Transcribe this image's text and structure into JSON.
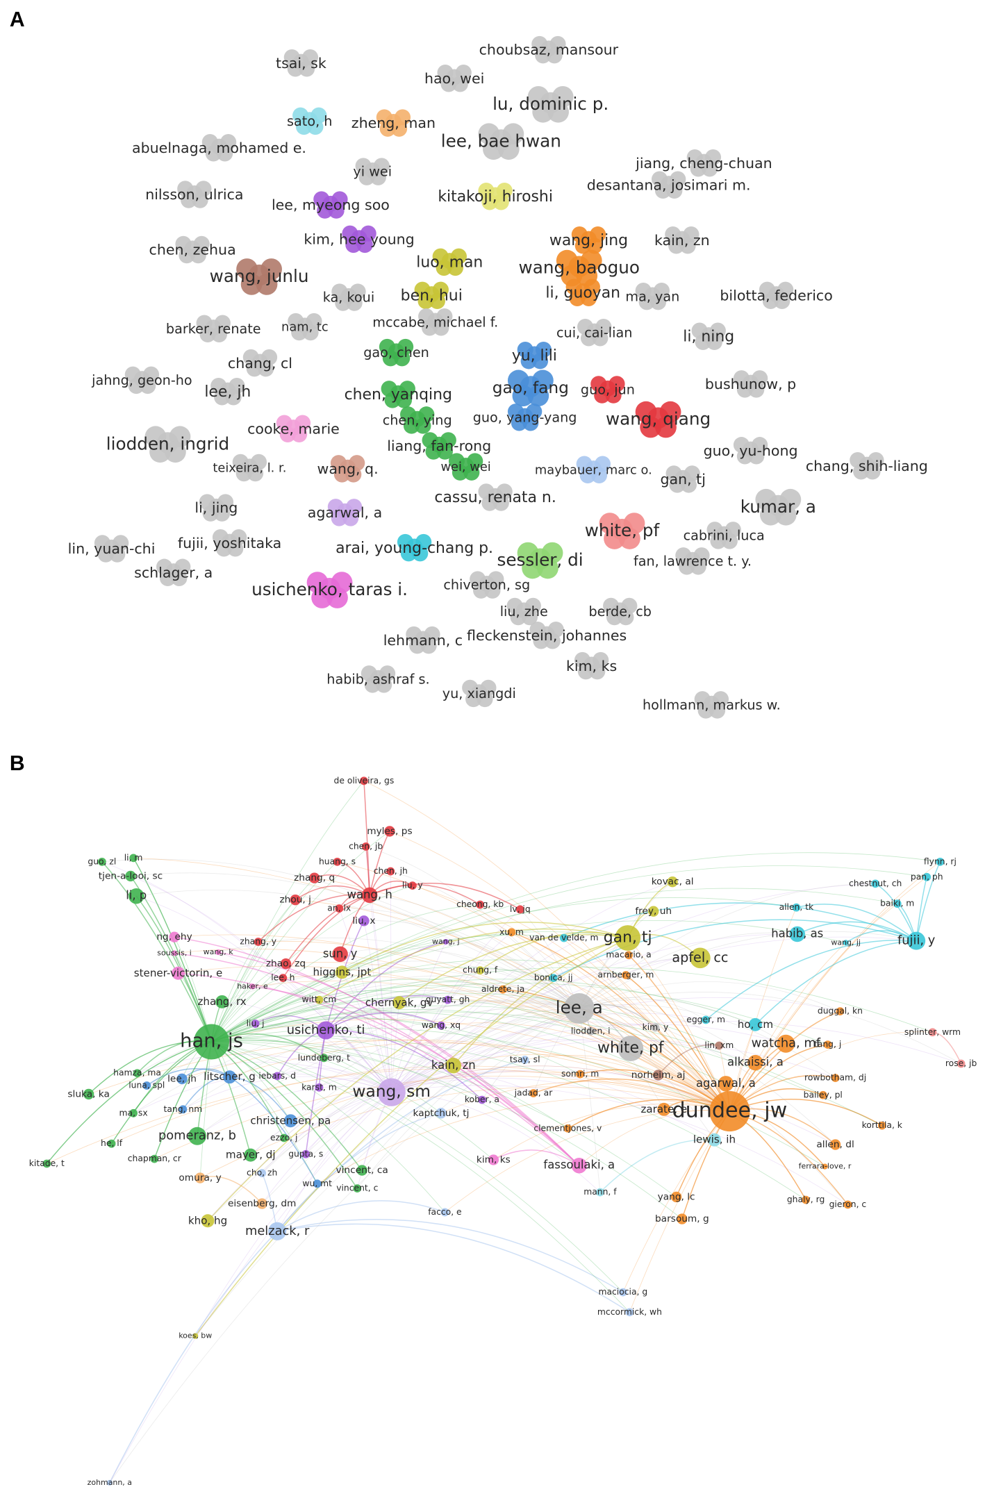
{
  "panels": [
    {
      "label": "A",
      "nodes": [
        {
          "label": "choubsaz, mansour",
          "color": "#c4c4c4"
        },
        {
          "label": "tsai, sk",
          "color": "#c4c4c4"
        },
        {
          "label": "hao, wei",
          "color": "#c4c4c4"
        },
        {
          "label": "lu, dominic p.",
          "color": "#c4c4c4"
        },
        {
          "label": "sato, h",
          "color": "#8edbe8"
        },
        {
          "label": "zheng, man",
          "color": "#f4b06c"
        },
        {
          "label": "lee, bae hwan",
          "color": "#c4c4c4"
        },
        {
          "label": "abuelnaga, mohamed e.",
          "color": "#c4c4c4"
        },
        {
          "label": "jiang, cheng-chuan",
          "color": "#c4c4c4"
        },
        {
          "label": "yi wei",
          "color": "#c4c4c4"
        },
        {
          "label": "desantana, josimari m.",
          "color": "#c4c4c4"
        },
        {
          "label": "nilsson, ulrica",
          "color": "#c4c4c4"
        },
        {
          "label": "kitakoji, hiroshi",
          "color": "#e2e272"
        },
        {
          "label": "lee, myeong soo",
          "color": "#a259d9"
        },
        {
          "label": "kim, hee young",
          "color": "#a259d9"
        },
        {
          "label": "wang, jing",
          "color": "#f28c28"
        },
        {
          "label": "kain, zn",
          "color": "#c4c4c4"
        },
        {
          "label": "chen, zehua",
          "color": "#c4c4c4"
        },
        {
          "label": "luo, man",
          "color": "#c8c436"
        },
        {
          "label": "wang, junlu",
          "color": "#b07a6a"
        },
        {
          "label": "wang, baoguo",
          "color": "#f28c28"
        },
        {
          "label": "li, guoyan",
          "color": "#f28c28"
        },
        {
          "label": "ma, yan",
          "color": "#c4c4c4"
        },
        {
          "label": "bilotta, federico",
          "color": "#c4c4c4"
        },
        {
          "label": "ka, koui",
          "color": "#c4c4c4"
        },
        {
          "label": "ben, hui",
          "color": "#c8c436"
        },
        {
          "label": "mccabe, michael f.",
          "color": "#c4c4c4"
        },
        {
          "label": "barker, renate",
          "color": "#c4c4c4"
        },
        {
          "label": "nam, tc",
          "color": "#c4c4c4"
        },
        {
          "label": "cui, cai-lian",
          "color": "#c4c4c4"
        },
        {
          "label": "li, ning",
          "color": "#c4c4c4"
        },
        {
          "label": "gao, chen",
          "color": "#3fb34f"
        },
        {
          "label": "yu, lili",
          "color": "#4a8fd8"
        },
        {
          "label": "chang, cl",
          "color": "#c4c4c4"
        },
        {
          "label": "jahng, geon-ho",
          "color": "#c4c4c4"
        },
        {
          "label": "bushunow, p",
          "color": "#c4c4c4"
        },
        {
          "label": "lee, jh",
          "color": "#c4c4c4"
        },
        {
          "label": "gao, fang",
          "color": "#4a8fd8"
        },
        {
          "label": "guo, jun",
          "color": "#e3393f"
        },
        {
          "label": "chen, yanqing",
          "color": "#3fb34f"
        },
        {
          "label": "wang, qiang",
          "color": "#e3393f"
        },
        {
          "label": "chen, ying",
          "color": "#3fb34f"
        },
        {
          "label": "guo, yang-yang",
          "color": "#4a8fd8"
        },
        {
          "label": "cooke, marie",
          "color": "#f2a0d8"
        },
        {
          "label": "liodden, ingrid",
          "color": "#c4c4c4"
        },
        {
          "label": "liang, fan-rong",
          "color": "#3fb34f"
        },
        {
          "label": "guo, yu-hong",
          "color": "#c4c4c4"
        },
        {
          "label": "teixeira, l. r.",
          "color": "#c4c4c4"
        },
        {
          "label": "wang, q.",
          "color": "#d49a88"
        },
        {
          "label": "wei, wei",
          "color": "#3fb34f"
        },
        {
          "label": "maybauer, marc o.",
          "color": "#a9c7ef"
        },
        {
          "label": "chang, shih-liang",
          "color": "#c4c4c4"
        },
        {
          "label": "gan, tj",
          "color": "#c4c4c4"
        },
        {
          "label": "cassu, renata n.",
          "color": "#c4c4c4"
        },
        {
          "label": "kumar, a",
          "color": "#c4c4c4"
        },
        {
          "label": "li, jing",
          "color": "#c4c4c4"
        },
        {
          "label": "agarwal, a",
          "color": "#c9a6e9"
        },
        {
          "label": "white, pf",
          "color": "#f28b8b"
        },
        {
          "label": "arai, young-chang p.",
          "color": "#38c6d8"
        },
        {
          "label": "fujii, yoshitaka",
          "color": "#c4c4c4"
        },
        {
          "label": "lin, yuan-chi",
          "color": "#c4c4c4"
        },
        {
          "label": "cabrini, luca",
          "color": "#c4c4c4"
        },
        {
          "label": "sessler, di",
          "color": "#8fd672"
        },
        {
          "label": "fan, lawrence t. y.",
          "color": "#c4c4c4"
        },
        {
          "label": "schlager, a",
          "color": "#c4c4c4"
        },
        {
          "label": "usichenko, taras i.",
          "color": "#e56ad6"
        },
        {
          "label": "chiverton, sg",
          "color": "#c4c4c4"
        },
        {
          "label": "liu, zhe",
          "color": "#c4c4c4"
        },
        {
          "label": "berde, cb",
          "color": "#c4c4c4"
        },
        {
          "label": "lehmann, c",
          "color": "#c4c4c4"
        },
        {
          "label": "fleckenstein, johannes",
          "color": "#c4c4c4"
        },
        {
          "label": "kim, ks",
          "color": "#c4c4c4"
        },
        {
          "label": "habib, ashraf s.",
          "color": "#c4c4c4"
        },
        {
          "label": "yu, xiangdi",
          "color": "#c4c4c4"
        },
        {
          "label": "hollmann, markus w.",
          "color": "#c4c4c4"
        }
      ]
    },
    {
      "label": "B",
      "nodes": [
        {
          "label": "de oliveira, gs",
          "color": "#e3393f"
        },
        {
          "label": "myles, ps",
          "color": "#e3393f"
        },
        {
          "label": "chen, jb",
          "color": "#e3393f"
        },
        {
          "label": "guo, zl",
          "color": "#3fb34f"
        },
        {
          "label": "li, m",
          "color": "#3fb34f"
        },
        {
          "label": "huang, s",
          "color": "#e3393f"
        },
        {
          "label": "tjen-a-looi, sc",
          "color": "#3fb34f"
        },
        {
          "label": "chen, jh",
          "color": "#e3393f"
        },
        {
          "label": "flynn, rj",
          "color": "#38c6d8"
        },
        {
          "label": "zhang, q",
          "color": "#e3393f"
        },
        {
          "label": "kovac, al",
          "color": "#c8c436"
        },
        {
          "label": "chestnut, ch",
          "color": "#38c6d8"
        },
        {
          "label": "pan, ph",
          "color": "#38c6d8"
        },
        {
          "label": "liu, y",
          "color": "#e3393f"
        },
        {
          "label": "li, p",
          "color": "#3fb34f"
        },
        {
          "label": "wang, h",
          "color": "#e3393f"
        },
        {
          "label": "zhou, j",
          "color": "#e3393f"
        },
        {
          "label": "cheong, kb",
          "color": "#e3393f"
        },
        {
          "label": "lv, jq",
          "color": "#e3393f"
        },
        {
          "label": "an, lx",
          "color": "#e3393f"
        },
        {
          "label": "allen, tk",
          "color": "#38c6d8"
        },
        {
          "label": "baiki, m",
          "color": "#38c6d8"
        },
        {
          "label": "frey, uh",
          "color": "#c8c436"
        },
        {
          "label": "liu, x",
          "color": "#a259d9"
        },
        {
          "label": "ng, ehy",
          "color": "#ef7ad0"
        },
        {
          "label": "zhang, y",
          "color": "#e3393f"
        },
        {
          "label": "wang, j",
          "color": "#a259d9"
        },
        {
          "label": "xu, m",
          "color": "#f28c28"
        },
        {
          "label": "van de velde, m",
          "color": "#38c6d8"
        },
        {
          "label": "gan, tj",
          "color": "#c8c436"
        },
        {
          "label": "habib, as",
          "color": "#38c6d8"
        },
        {
          "label": "fujii, y",
          "color": "#38c6d8"
        },
        {
          "label": "wang, jj",
          "color": "#38c6d8"
        },
        {
          "label": "soussis, i",
          "color": "#ef7ad0"
        },
        {
          "label": "wang, k",
          "color": "#ef7ad0"
        },
        {
          "label": "sun, y",
          "color": "#e3393f"
        },
        {
          "label": "stener-victorin, e",
          "color": "#ef7ad0"
        },
        {
          "label": "zhao, zq",
          "color": "#e3393f"
        },
        {
          "label": "macario, a",
          "color": "#f28c28"
        },
        {
          "label": "apfel, cc",
          "color": "#c8c436"
        },
        {
          "label": "haker, e",
          "color": "#ef7ad0"
        },
        {
          "label": "lee, h",
          "color": "#e3393f"
        },
        {
          "label": "higgins, jpt",
          "color": "#c8c436"
        },
        {
          "label": "chung, f",
          "color": "#c8c436"
        },
        {
          "label": "bonica, jj",
          "color": "#38c6d8"
        },
        {
          "label": "arnberger, m",
          "color": "#f28c28"
        },
        {
          "label": "zhang, rx",
          "color": "#3fb34f"
        },
        {
          "label": "witt, cm",
          "color": "#c8c436"
        },
        {
          "label": "guyatt, gh",
          "color": "#a259d9"
        },
        {
          "label": "aldrete, ja",
          "color": "#f28c28"
        },
        {
          "label": "duggal, kn",
          "color": "#f28c28"
        },
        {
          "label": "chernyak, gv",
          "color": "#c8c436"
        },
        {
          "label": "lee, a",
          "color": "#bdbdbd"
        },
        {
          "label": "han, js",
          "color": "#3fb34f"
        },
        {
          "label": "liu, j",
          "color": "#a259d9"
        },
        {
          "label": "usichenko, ti",
          "color": "#a259d9"
        },
        {
          "label": "wang, xq",
          "color": "#a259d9"
        },
        {
          "label": "liodden, i",
          "color": "#bdbdbd"
        },
        {
          "label": "egger, m",
          "color": "#38c6d8"
        },
        {
          "label": "kim, y",
          "color": "#bdbdbd"
        },
        {
          "label": "ho, cm",
          "color": "#38c6d8"
        },
        {
          "label": "splinter, wrm",
          "color": "#f28b8b"
        },
        {
          "label": "white, pf",
          "color": "#bdbdbd"
        },
        {
          "label": "watcha, mf",
          "color": "#f28c28"
        },
        {
          "label": "tang, j",
          "color": "#f28c28"
        },
        {
          "label": "lin, xm",
          "color": "#b07a6a"
        },
        {
          "label": "rose, jb",
          "color": "#f28b8b"
        },
        {
          "label": "lundeberg, t",
          "color": "#3fb34f"
        },
        {
          "label": "kain, zn",
          "color": "#c8c436"
        },
        {
          "label": "tsay, sl",
          "color": "#a9c7ef"
        },
        {
          "label": "hamza, ma",
          "color": "#3fb34f"
        },
        {
          "label": "luna, spl",
          "color": "#4a8fd8"
        },
        {
          "label": "lee, jh",
          "color": "#4a8fd8"
        },
        {
          "label": "litscher, g",
          "color": "#4a8fd8"
        },
        {
          "label": "iebars, d",
          "color": "#a259d9"
        },
        {
          "label": "karst, m",
          "color": "#a259d9"
        },
        {
          "label": "somri, m",
          "color": "#f28c28"
        },
        {
          "label": "norheim, aj",
          "color": "#b07a6a"
        },
        {
          "label": "alkaissi, a",
          "color": "#f28c28"
        },
        {
          "label": "rowbotham, dj",
          "color": "#f28c28"
        },
        {
          "label": "sluka, ka",
          "color": "#3fb34f"
        },
        {
          "label": "wang, sm",
          "color": "#c9a6e9"
        },
        {
          "label": "jadad, ar",
          "color": "#f28c28"
        },
        {
          "label": "kober, a",
          "color": "#a259d9"
        },
        {
          "label": "kaptchuk, tj",
          "color": "#a9c7ef"
        },
        {
          "label": "bailey, pl",
          "color": "#f28c28"
        },
        {
          "label": "ma, sx",
          "color": "#3fb34f"
        },
        {
          "label": "tang, nm",
          "color": "#4a8fd8"
        },
        {
          "label": "christensen, pa",
          "color": "#4a8fd8"
        },
        {
          "label": "agarwal, a",
          "color": "#f28c28"
        },
        {
          "label": "zarate, e",
          "color": "#f28c28"
        },
        {
          "label": "dundee, jw",
          "color": "#f28c28"
        },
        {
          "label": "korttila, k",
          "color": "#f28c28"
        },
        {
          "label": "clementjones, v",
          "color": "#f28c28"
        },
        {
          "label": "pomeranz, b",
          "color": "#3fb34f"
        },
        {
          "label": "ezzo, j",
          "color": "#3fb34f"
        },
        {
          "label": "he, lf",
          "color": "#3fb34f"
        },
        {
          "label": "chapman, cr",
          "color": "#3fb34f"
        },
        {
          "label": "mayer, dj",
          "color": "#3fb34f"
        },
        {
          "label": "gupta, s",
          "color": "#a259d9"
        },
        {
          "label": "kim, ks",
          "color": "#ef7ad0"
        },
        {
          "label": "fassoulaki, a",
          "color": "#ef7ad0"
        },
        {
          "label": "allen, dl",
          "color": "#f28c28"
        },
        {
          "label": "lewis, ih",
          "color": "#8edbe8"
        },
        {
          "label": "ferrara-love, r",
          "color": "#f28c28"
        },
        {
          "label": "kitade, t",
          "color": "#3fb34f"
        },
        {
          "label": "cho, zh",
          "color": "#a9c7ef"
        },
        {
          "label": "vincent, ca",
          "color": "#3fb34f"
        },
        {
          "label": "omura, y",
          "color": "#f4b06c"
        },
        {
          "label": "wu, mt",
          "color": "#4a8fd8"
        },
        {
          "label": "vincent, c",
          "color": "#3fb34f"
        },
        {
          "label": "mann, f",
          "color": "#8edbe8"
        },
        {
          "label": "yang, lc",
          "color": "#f28c28"
        },
        {
          "label": "ghaly, rg",
          "color": "#f28c28"
        },
        {
          "label": "gieron, c",
          "color": "#f28c28"
        },
        {
          "label": "eisenberg, dm",
          "color": "#f4b06c"
        },
        {
          "label": "facco, e",
          "color": "#a9c7ef"
        },
        {
          "label": "barsoum, g",
          "color": "#f28c28"
        },
        {
          "label": "kho, hg",
          "color": "#c8c436"
        },
        {
          "label": "melzack, r",
          "color": "#a9c7ef"
        },
        {
          "label": "maciocia, g",
          "color": "#a9c7ef"
        },
        {
          "label": "mccormick, wh",
          "color": "#a9c7ef"
        },
        {
          "label": "koes, bw",
          "color": "#c8c436"
        },
        {
          "label": "zohmann, a",
          "color": "#a9c7ef"
        }
      ]
    }
  ]
}
